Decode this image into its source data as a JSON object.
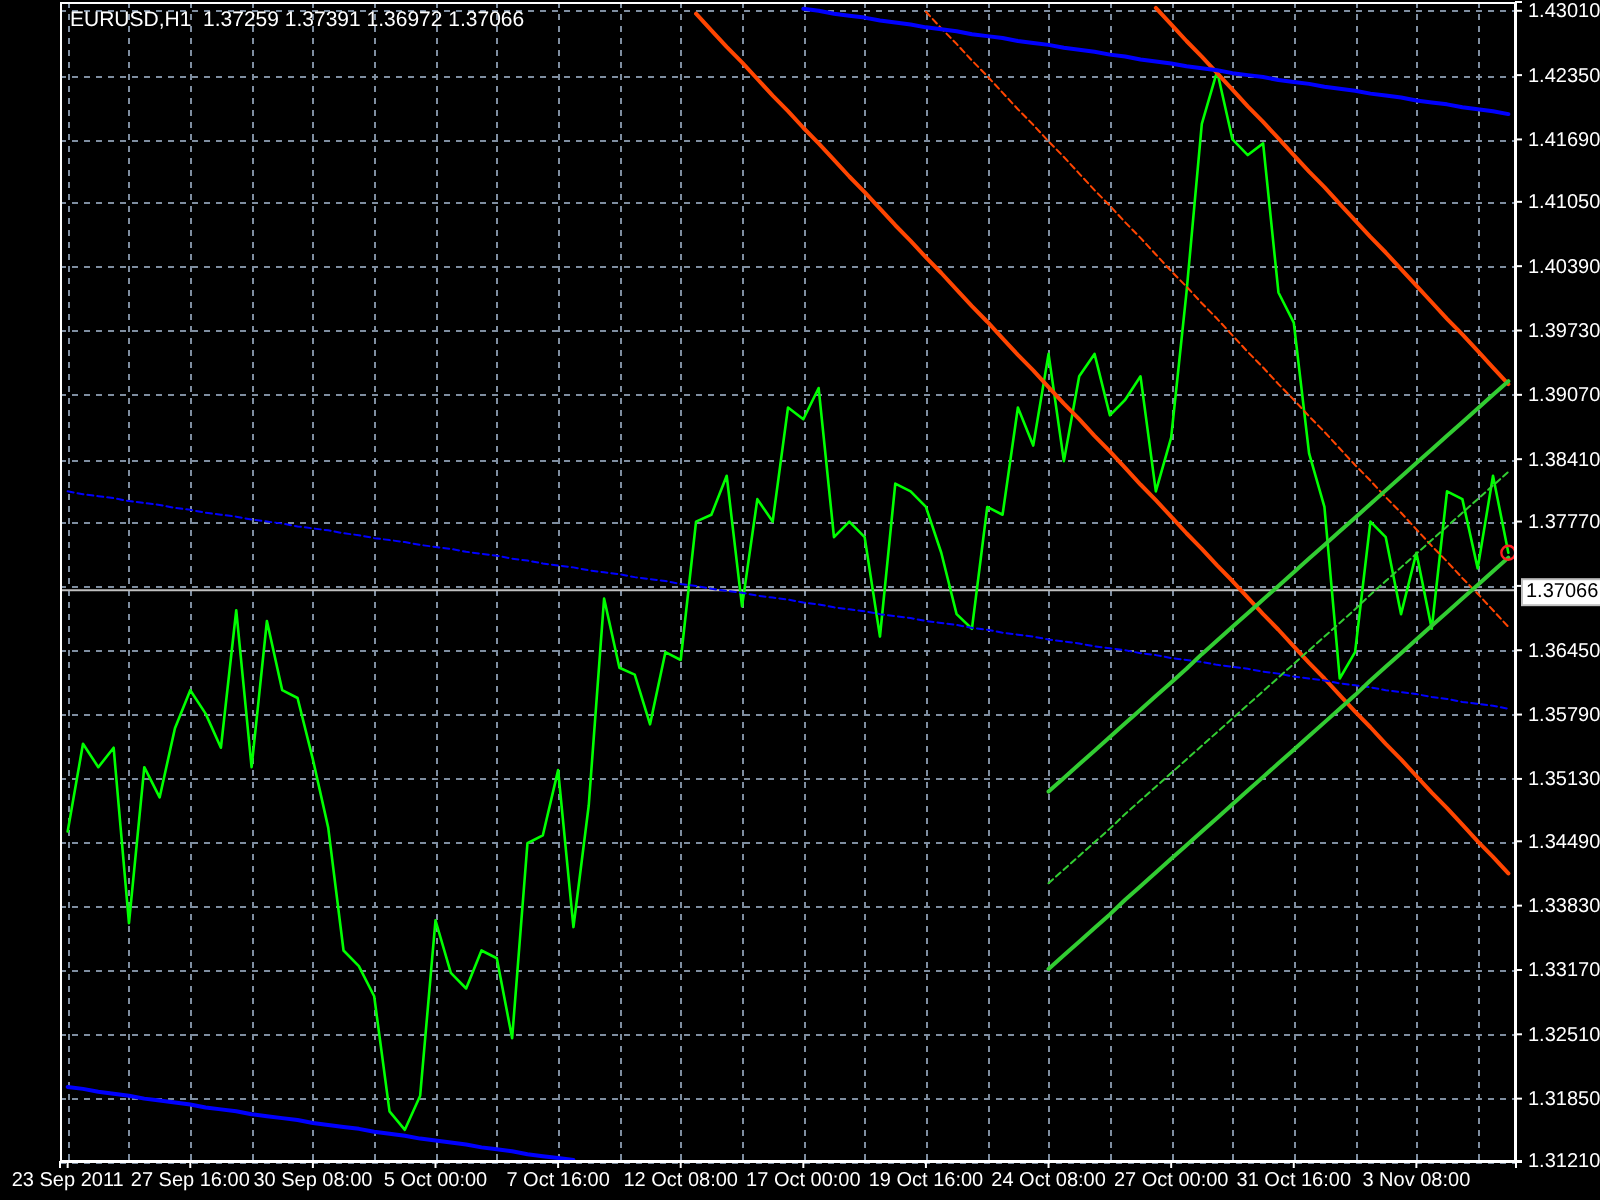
{
  "chart_data": {
    "type": "line",
    "title": "EURUSD,H1  1.37259 1.37391 1.36972 1.37066",
    "categories": [
      "23 Sep 2011",
      null,
      null,
      null,
      null,
      null,
      null,
      null,
      "27 Sep 16:00",
      null,
      null,
      null,
      null,
      null,
      null,
      null,
      "30 Sep 08:00",
      null,
      null,
      null,
      null,
      null,
      null,
      null,
      "5 Oct 00:00",
      null,
      null,
      null,
      null,
      null,
      null,
      null,
      "7 Oct 16:00",
      null,
      null,
      null,
      null,
      null,
      null,
      null,
      "12 Oct 08:00",
      null,
      null,
      null,
      null,
      null,
      null,
      null,
      "17 Oct 00:00",
      null,
      null,
      null,
      null,
      null,
      null,
      null,
      "19 Oct 16:00",
      null,
      null,
      null,
      null,
      null,
      null,
      null,
      "24 Oct 08:00",
      null,
      null,
      null,
      null,
      null,
      null,
      null,
      "27 Oct 00:00",
      null,
      null,
      null,
      null,
      null,
      null,
      null,
      "31 Oct 16:00",
      null,
      null,
      null,
      null,
      null,
      null,
      null,
      "3 Nov 08:00",
      null,
      null,
      null,
      null,
      null,
      null
    ],
    "ylim": [
      1.312,
      1.431
    ],
    "yticks": [
      {
        "value": 1.4301,
        "label": "1.43010"
      },
      {
        "value": 1.4235,
        "label": "1.42350"
      },
      {
        "value": 1.4169,
        "label": "1.41690"
      },
      {
        "value": 1.4105,
        "label": "1.41050"
      },
      {
        "value": 1.4039,
        "label": "1.40390"
      },
      {
        "value": 1.3973,
        "label": "1.39730"
      },
      {
        "value": 1.3907,
        "label": "1.39070"
      },
      {
        "value": 1.3841,
        "label": "1.38410"
      },
      {
        "value": 1.3777,
        "label": "1.37770"
      },
      {
        "value": 1.3711,
        "label": null
      },
      {
        "value": 1.3645,
        "label": "1.36450"
      },
      {
        "value": 1.3579,
        "label": "1.35790"
      },
      {
        "value": 1.3513,
        "label": "1.35130"
      },
      {
        "value": 1.3449,
        "label": "1.34490"
      },
      {
        "value": 1.3383,
        "label": "1.33830"
      },
      {
        "value": 1.3317,
        "label": "1.33170"
      },
      {
        "value": 1.3251,
        "label": "1.32510"
      },
      {
        "value": 1.3185,
        "label": "1.31850"
      },
      {
        "value": 1.3121,
        "label": "1.31210"
      }
    ],
    "grid": true,
    "series": [
      {
        "color": "#00ff00",
        "values": [
          1.3459,
          1.3549,
          1.3525,
          1.3545,
          1.3365,
          1.3525,
          1.3494,
          1.3565,
          1.3604,
          1.358,
          1.3545,
          1.3686,
          1.3525,
          1.3675,
          1.3604,
          1.3596,
          1.3533,
          1.3463,
          1.3337,
          1.3321,
          1.329,
          1.3172,
          1.3153,
          1.3188,
          1.3368,
          1.3314,
          1.3298,
          1.3337,
          1.3329,
          1.3247,
          1.3447,
          1.3455,
          1.3522,
          1.3361,
          1.3486,
          1.3698,
          1.3627,
          1.362,
          1.3569,
          1.3643,
          1.3635,
          1.3777,
          1.3784,
          1.3824,
          1.369,
          1.38,
          1.3777,
          1.3894,
          1.3882,
          1.3914,
          1.3761,
          1.3777,
          1.3761,
          1.3659,
          1.3816,
          1.3808,
          1.3792,
          1.3745,
          1.3682,
          1.3667,
          1.3792,
          1.3784,
          1.3894,
          1.3855,
          1.3949,
          1.3839,
          1.3926,
          1.3949,
          1.3886,
          1.3902,
          1.3926,
          1.3808,
          1.3863,
          1.4012,
          1.4185,
          1.4239,
          1.4169,
          1.4153,
          1.4165,
          1.4012,
          1.3981,
          1.3847,
          1.3792,
          1.3616,
          1.3643,
          1.3777,
          1.3761,
          1.3682,
          1.3745,
          1.3667,
          1.3808,
          1.38,
          1.3729,
          1.3824,
          1.3745
        ]
      },
      {
        "type": "line",
        "color": "#ff4500",
        "values": [
          null,
          null,
          null,
          null,
          null,
          null,
          null,
          null,
          null,
          null,
          null,
          null,
          null,
          null,
          null,
          null,
          null,
          null,
          null,
          null,
          null,
          null,
          null,
          null,
          null,
          null,
          null,
          null,
          null,
          null,
          null,
          null,
          null,
          null,
          null,
          null,
          null,
          null,
          null,
          null,
          null,
          1.4298,
          1.4281,
          1.4264,
          1.4248,
          1.4231,
          1.4214,
          1.4198,
          1.4181,
          1.4165,
          1.4148,
          1.4131,
          1.4115,
          1.4098,
          1.4081,
          1.4065,
          1.4048,
          1.4032,
          1.4015,
          1.3998,
          1.3982,
          1.3965,
          1.3948,
          1.3932,
          1.3915,
          1.3898,
          1.3882,
          1.3865,
          1.3849,
          1.3832,
          1.3815,
          1.3799,
          1.3782,
          1.3765,
          1.3749,
          1.3732,
          1.3716,
          1.3699,
          1.3682,
          1.3666,
          1.3649,
          1.3632,
          1.3616,
          1.3599,
          1.3582,
          1.3566,
          1.3549,
          1.3533,
          1.3516,
          1.3499,
          1.3483,
          1.3466,
          1.3449,
          1.3433,
          1.3416
        ]
      },
      {
        "type": "line",
        "color": "#ff4500",
        "values": [
          null,
          null,
          null,
          null,
          null,
          null,
          null,
          null,
          null,
          null,
          null,
          null,
          null,
          null,
          null,
          null,
          null,
          null,
          null,
          null,
          null,
          null,
          null,
          null,
          null,
          null,
          null,
          null,
          null,
          null,
          null,
          null,
          null,
          null,
          null,
          null,
          null,
          null,
          null,
          null,
          null,
          null,
          null,
          null,
          null,
          null,
          null,
          null,
          null,
          null,
          null,
          null,
          null,
          null,
          null,
          null,
          null,
          null,
          null,
          null,
          null,
          null,
          null,
          null,
          null,
          null,
          null,
          null,
          null,
          null,
          null,
          1.4304,
          1.4287,
          1.427,
          1.4254,
          1.4237,
          1.422,
          1.4203,
          1.4187,
          1.417,
          1.4153,
          1.4136,
          1.412,
          1.4103,
          1.4086,
          1.4069,
          1.4053,
          1.4036,
          1.4019,
          1.4002,
          1.3985,
          1.3969,
          1.3952,
          1.3935,
          1.3918
        ]
      },
      {
        "type": "line",
        "color": "#ff4500",
        "line_style": "dotted",
        "values": [
          null,
          null,
          null,
          null,
          null,
          null,
          null,
          null,
          null,
          null,
          null,
          null,
          null,
          null,
          null,
          null,
          null,
          null,
          null,
          null,
          null,
          null,
          null,
          null,
          null,
          null,
          null,
          null,
          null,
          null,
          null,
          null,
          null,
          null,
          null,
          null,
          null,
          null,
          null,
          null,
          null,
          null,
          null,
          null,
          null,
          null,
          null,
          null,
          null,
          null,
          null,
          null,
          null,
          null,
          null,
          null,
          1.43,
          1.4283,
          1.4267,
          1.425,
          1.4234,
          1.4217,
          1.42,
          1.4184,
          1.4167,
          1.4151,
          1.4134,
          1.4117,
          1.4101,
          1.4084,
          1.4068,
          1.4051,
          1.4034,
          1.4018,
          1.4001,
          1.3985,
          1.3968,
          1.3951,
          1.3935,
          1.3918,
          1.3902,
          1.3885,
          1.3869,
          1.3852,
          1.3835,
          1.3819,
          1.3802,
          1.3786,
          1.3769,
          1.3752,
          1.3736,
          1.3719,
          1.3703,
          1.3686,
          1.3669
        ]
      },
      {
        "type": "line",
        "color": "#0000ff",
        "values": [
          null,
          null,
          null,
          null,
          null,
          null,
          null,
          null,
          null,
          null,
          null,
          null,
          null,
          null,
          null,
          null,
          null,
          null,
          null,
          null,
          null,
          null,
          null,
          null,
          null,
          null,
          null,
          null,
          null,
          null,
          null,
          null,
          null,
          null,
          null,
          null,
          null,
          null,
          null,
          null,
          null,
          null,
          null,
          null,
          null,
          null,
          null,
          null,
          1.4303,
          1.4301,
          1.4298,
          1.4296,
          1.4294,
          1.4291,
          1.4289,
          1.4287,
          1.4284,
          1.4282,
          1.428,
          1.4277,
          1.4275,
          1.4273,
          1.427,
          1.4268,
          1.4266,
          1.4263,
          1.4261,
          1.4259,
          1.4256,
          1.4254,
          1.4251,
          1.4249,
          1.4247,
          1.4244,
          1.4242,
          1.424,
          1.4237,
          1.4235,
          1.4233,
          1.423,
          1.4228,
          1.4226,
          1.4223,
          1.4221,
          1.4219,
          1.4216,
          1.4214,
          1.4212,
          1.4209,
          1.4207,
          1.4205,
          1.4202,
          1.42,
          1.4198,
          1.4195
        ]
      },
      {
        "type": "line",
        "color": "#0000ff",
        "values": [
          1.3197,
          1.3195,
          1.3192,
          1.319,
          1.3188,
          1.3185,
          1.3183,
          1.3181,
          1.3179,
          1.3176,
          1.3174,
          1.3172,
          1.3169,
          1.3167,
          1.3165,
          1.3163,
          1.316,
          1.3158,
          1.3156,
          1.3154,
          1.3151,
          1.3149,
          1.3147,
          1.3144,
          1.3142,
          1.314,
          1.3138,
          1.3135,
          1.3133,
          1.3131,
          1.3128,
          1.3126,
          1.3124,
          1.3122,
          null,
          null,
          null,
          null,
          null,
          null,
          null,
          null,
          null,
          null,
          null,
          null,
          null,
          null,
          null,
          null,
          null,
          null,
          null,
          null,
          null,
          null,
          null,
          null,
          null,
          null,
          null,
          null,
          null,
          null,
          null,
          null,
          null,
          null,
          null,
          null,
          null,
          null,
          null,
          null,
          null,
          null,
          null,
          null,
          null,
          null,
          null,
          null,
          null,
          null,
          null,
          null,
          null,
          null,
          null,
          null,
          null,
          null,
          null,
          null,
          null
        ]
      },
      {
        "type": "line",
        "color": "#0000ff",
        "line_style": "dotted",
        "values": [
          1.3808,
          1.3805,
          1.3803,
          1.3801,
          1.3798,
          1.3796,
          1.3794,
          1.3791,
          1.3789,
          1.3786,
          1.3784,
          1.3782,
          1.3779,
          1.3777,
          1.3775,
          1.3772,
          1.377,
          1.3768,
          1.3765,
          1.3763,
          1.376,
          1.3758,
          1.3756,
          1.3753,
          1.3751,
          1.3749,
          1.3746,
          1.3744,
          1.3742,
          1.3739,
          1.3737,
          1.3734,
          1.3732,
          1.373,
          1.3727,
          1.3725,
          1.3723,
          1.372,
          1.3718,
          1.3716,
          1.3713,
          1.3711,
          1.3708,
          1.3706,
          1.3704,
          1.3701,
          1.3699,
          1.3697,
          1.3694,
          1.3692,
          1.3689,
          1.3687,
          1.3685,
          1.3682,
          1.368,
          1.3678,
          1.3675,
          1.3673,
          1.3671,
          1.3668,
          1.3666,
          1.3663,
          1.3661,
          1.3659,
          1.3656,
          1.3654,
          1.3652,
          1.3649,
          1.3647,
          1.3645,
          1.3642,
          1.364,
          1.3637,
          1.3635,
          1.3633,
          1.363,
          1.3628,
          1.3626,
          1.3623,
          1.3621,
          1.3618,
          1.3616,
          1.3614,
          1.3611,
          1.3609,
          1.3607,
          1.3604,
          1.3602,
          1.36,
          1.3597,
          1.3595,
          1.3592,
          1.359,
          1.3588,
          1.3585
        ]
      },
      {
        "type": "line",
        "color": "#32cd32",
        "values": [
          null,
          null,
          null,
          null,
          null,
          null,
          null,
          null,
          null,
          null,
          null,
          null,
          null,
          null,
          null,
          null,
          null,
          null,
          null,
          null,
          null,
          null,
          null,
          null,
          null,
          null,
          null,
          null,
          null,
          null,
          null,
          null,
          null,
          null,
          null,
          null,
          null,
          null,
          null,
          null,
          null,
          null,
          null,
          null,
          null,
          null,
          null,
          null,
          null,
          null,
          null,
          null,
          null,
          null,
          null,
          null,
          null,
          null,
          null,
          null,
          null,
          null,
          null,
          null,
          1.35,
          1.3514,
          1.3528,
          1.3542,
          1.3556,
          1.357,
          1.3584,
          1.3598,
          1.3612,
          1.3626,
          1.3641,
          1.3655,
          1.3669,
          1.3683,
          1.3697,
          1.3711,
          1.3725,
          1.3739,
          1.3753,
          1.3767,
          1.3781,
          1.3795,
          1.3809,
          1.3823,
          1.3837,
          1.3851,
          1.3865,
          1.3879,
          1.3893,
          1.3907,
          1.3921
        ]
      },
      {
        "type": "line",
        "color": "#32cd32",
        "values": [
          null,
          null,
          null,
          null,
          null,
          null,
          null,
          null,
          null,
          null,
          null,
          null,
          null,
          null,
          null,
          null,
          null,
          null,
          null,
          null,
          null,
          null,
          null,
          null,
          null,
          null,
          null,
          null,
          null,
          null,
          null,
          null,
          null,
          null,
          null,
          null,
          null,
          null,
          null,
          null,
          null,
          null,
          null,
          null,
          null,
          null,
          null,
          null,
          null,
          null,
          null,
          null,
          null,
          null,
          null,
          null,
          null,
          null,
          null,
          null,
          null,
          null,
          null,
          null,
          1.3318,
          1.3332,
          1.3346,
          1.336,
          1.3374,
          1.3389,
          1.3403,
          1.3417,
          1.3431,
          1.3445,
          1.3459,
          1.3473,
          1.3487,
          1.3501,
          1.3515,
          1.3529,
          1.3543,
          1.3557,
          1.3571,
          1.3585,
          1.3599,
          1.3614,
          1.3628,
          1.3642,
          1.3656,
          1.367,
          1.3684,
          1.3698,
          1.3712,
          1.3726,
          1.374
        ]
      },
      {
        "type": "line",
        "color": "#32cd32",
        "line_style": "dotted",
        "values": [
          null,
          null,
          null,
          null,
          null,
          null,
          null,
          null,
          null,
          null,
          null,
          null,
          null,
          null,
          null,
          null,
          null,
          null,
          null,
          null,
          null,
          null,
          null,
          null,
          null,
          null,
          null,
          null,
          null,
          null,
          null,
          null,
          null,
          null,
          null,
          null,
          null,
          null,
          null,
          null,
          null,
          null,
          null,
          null,
          null,
          null,
          null,
          null,
          null,
          null,
          null,
          null,
          null,
          null,
          null,
          null,
          null,
          null,
          null,
          null,
          null,
          null,
          null,
          null,
          1.3406,
          1.342,
          1.3434,
          1.3448,
          1.3462,
          1.3477,
          1.3491,
          1.3505,
          1.3519,
          1.3533,
          1.3547,
          1.3561,
          1.3575,
          1.3589,
          1.3603,
          1.3617,
          1.3631,
          1.3645,
          1.3659,
          1.3673,
          1.3687,
          1.3702,
          1.3716,
          1.373,
          1.3744,
          1.3758,
          1.3772,
          1.3786,
          1.38,
          1.3814,
          1.3828
        ]
      }
    ],
    "ref_lines": [
      {
        "axis": "y",
        "value": 1.37066,
        "label": "1.37066",
        "color": "#c0c0c0"
      }
    ]
  }
}
